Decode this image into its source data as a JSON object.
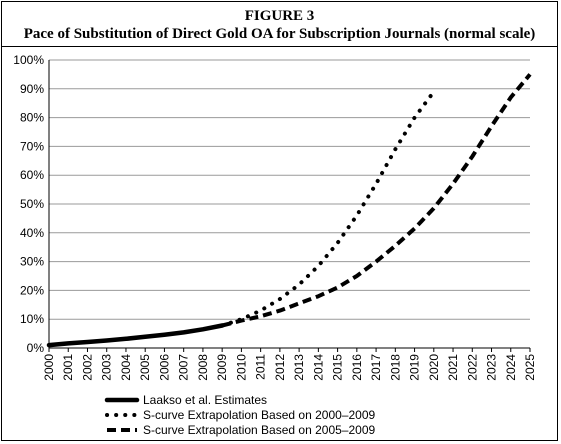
{
  "figure": {
    "label": "FIGURE 3",
    "title": "Pace of Substitution of Direct Gold OA for Subscription Journals (normal scale)"
  },
  "chart_data": {
    "type": "line",
    "x_categories": [
      "2000",
      "2001",
      "2002",
      "2003",
      "2004",
      "2005",
      "2006",
      "2007",
      "2008",
      "2009",
      "2010",
      "2011",
      "2012",
      "2013",
      "2014",
      "2015",
      "2016",
      "2017",
      "2018",
      "2019",
      "2020",
      "2021",
      "2022",
      "2023",
      "2024",
      "2025"
    ],
    "ylim": [
      0,
      100
    ],
    "yticks": [
      0,
      10,
      20,
      30,
      40,
      50,
      60,
      70,
      80,
      90,
      100
    ],
    "ytick_labels": [
      "0%",
      "10%",
      "20%",
      "30%",
      "40%",
      "50%",
      "60%",
      "70%",
      "80%",
      "90%",
      "100%"
    ],
    "grid": "horizontal",
    "legend_position": "bottom",
    "series": [
      {
        "name": "Laakso et al. Estimates",
        "style": "solid",
        "x": [
          "2000",
          "2001",
          "2002",
          "2003",
          "2004",
          "2005",
          "2006",
          "2007",
          "2008",
          "2009"
        ],
        "values": [
          1.0,
          1.6,
          2.1,
          2.6,
          3.2,
          3.9,
          4.6,
          5.4,
          6.5,
          7.8
        ]
      },
      {
        "name": "S-curve Extrapolation Based on 2000–2009",
        "style": "dotted",
        "x": [
          "2009",
          "2010",
          "2011",
          "2012",
          "2013",
          "2014",
          "2015",
          "2016",
          "2017",
          "2018",
          "2019",
          "2020"
        ],
        "values": [
          7.8,
          10.0,
          13.0,
          17.0,
          22.0,
          28.5,
          36.5,
          46.0,
          57.0,
          69.0,
          80.0,
          89.0
        ]
      },
      {
        "name": "S-curve Extrapolation Based on 2005–2009",
        "style": "dashed",
        "x": [
          "2009",
          "2010",
          "2011",
          "2012",
          "2013",
          "2014",
          "2015",
          "2016",
          "2017",
          "2018",
          "2019",
          "2020",
          "2021",
          "2022",
          "2023",
          "2024",
          "2025"
        ],
        "values": [
          7.8,
          9.5,
          11.0,
          13.0,
          15.5,
          18.0,
          21.0,
          25.0,
          30.0,
          35.5,
          41.5,
          48.5,
          57.0,
          66.5,
          77.0,
          87.0,
          95.0
        ]
      }
    ]
  },
  "colors": {
    "line": "#000000",
    "grid": "#9a9a9a",
    "axis": "#000000"
  }
}
